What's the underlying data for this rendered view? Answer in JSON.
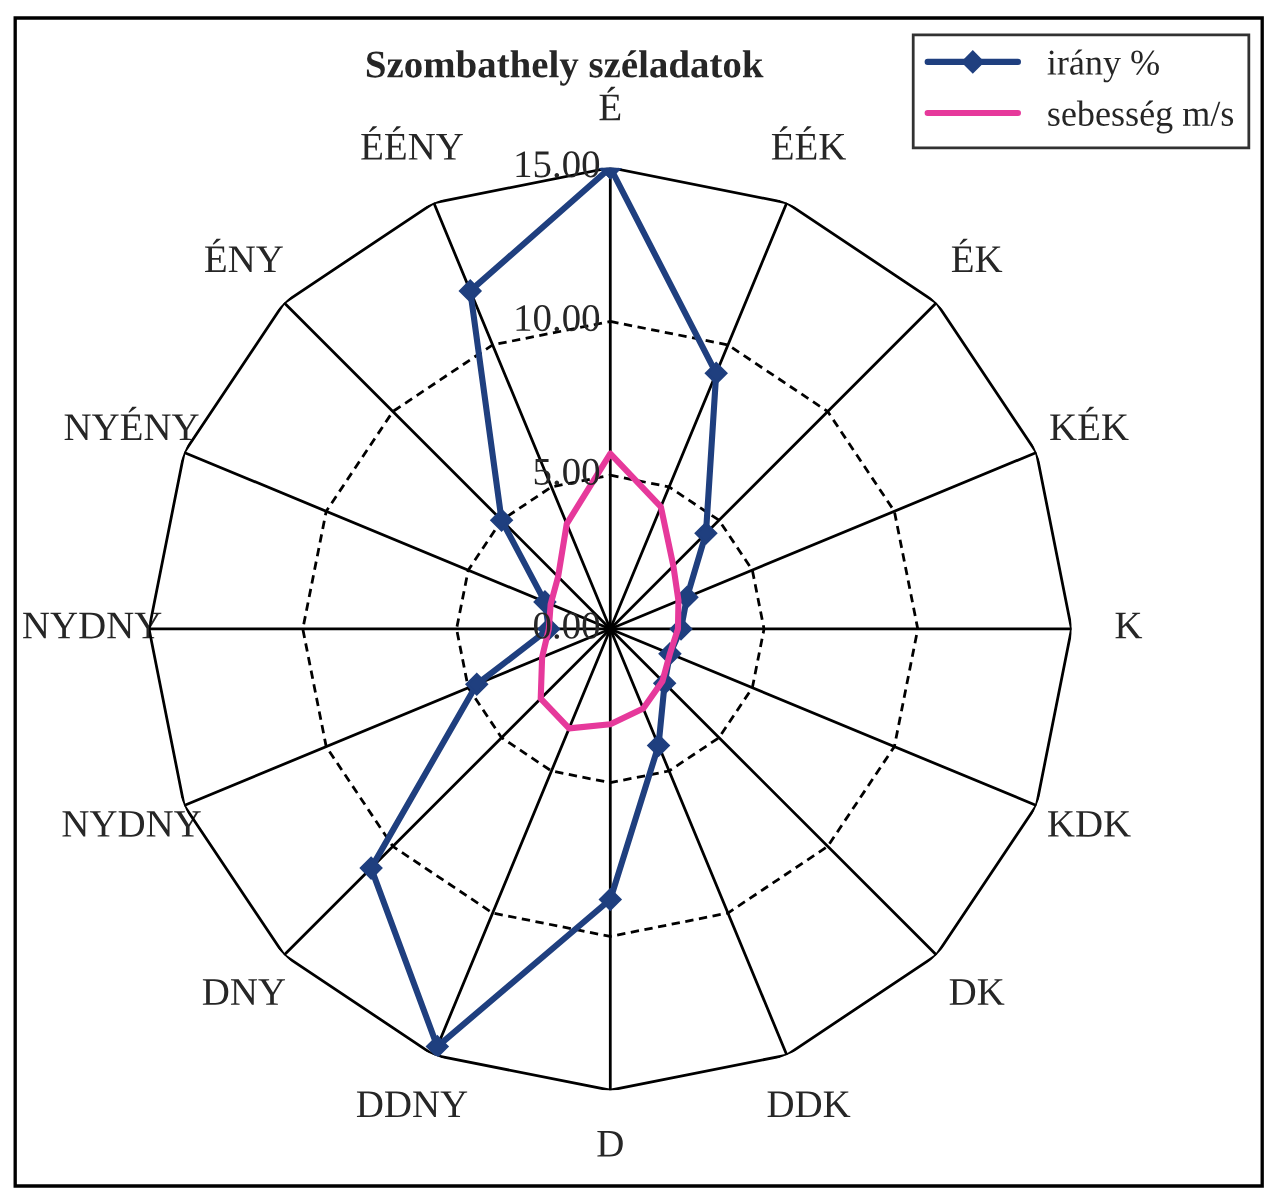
{
  "chart_data": {
    "type": "radar",
    "title": "Szombathely széladatok",
    "categories": [
      "É",
      "ÉÉK",
      "ÉK",
      "KÉK",
      "K",
      "KDK",
      "DK",
      "DDK",
      "D",
      "DDNY",
      "DNY",
      "NYDNY",
      "NYDNY",
      "NYÉNY",
      "ÉNY",
      "ÉÉNY"
    ],
    "series": [
      {
        "name": "irány %",
        "color": "#1f3f7f",
        "values": [
          15.0,
          9.0,
          4.4,
          2.7,
          2.3,
          2.1,
          2.5,
          4.1,
          8.8,
          14.7,
          11.0,
          4.7,
          2.0,
          2.3,
          5.0,
          11.9
        ]
      },
      {
        "name": "sebesség m/s",
        "color": "#e6399b",
        "values": [
          5.7,
          4.3,
          2.9,
          2.4,
          2.2,
          2.1,
          2.4,
          2.8,
          3.1,
          3.5,
          3.2,
          2.4,
          2.0,
          2.1,
          2.4,
          3.7
        ]
      }
    ],
    "ylim": [
      0,
      15
    ],
    "yticks": [
      {
        "value": 0,
        "label": "0.00"
      },
      {
        "value": 5,
        "label": "5.00"
      },
      {
        "value": 10,
        "label": "10.00"
      },
      {
        "value": 15,
        "label": "15.00"
      }
    ],
    "grid": true,
    "legend": "top right",
    "marker": "diamond"
  }
}
